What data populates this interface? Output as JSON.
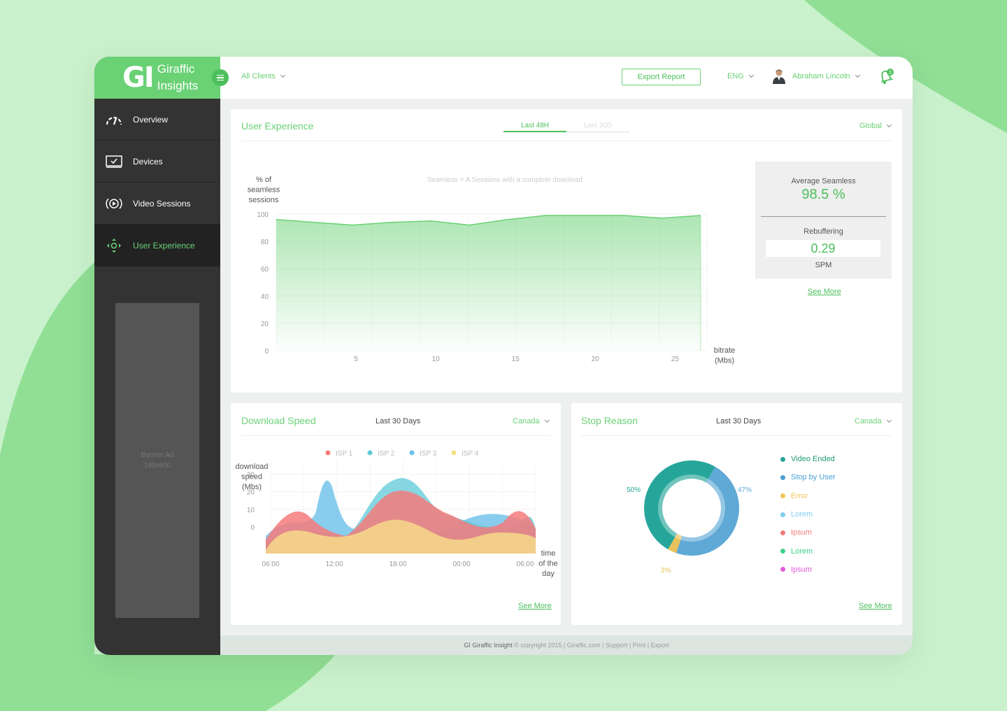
{
  "app": {
    "logo_mark": "GI",
    "logo_line1": "Giraffic",
    "logo_line2": "Insights"
  },
  "sidebar": {
    "items": [
      {
        "label": "Overview",
        "icon": "speedometer-icon",
        "active": false
      },
      {
        "label": "Devices",
        "icon": "monitor-check-icon",
        "active": false
      },
      {
        "label": "Video Sessions",
        "icon": "play-broadcast-icon",
        "active": false
      },
      {
        "label": "User Experience",
        "icon": "move-arrows-icon",
        "active": true
      }
    ],
    "banner_line1": "Banner Ad",
    "banner_line2": "160x600"
  },
  "topbar": {
    "clients": "All Clients",
    "export_label": "Export Report",
    "lang": "ENG",
    "user_name": "Abraham Lincoln",
    "notification_count": "3"
  },
  "user_experience": {
    "title": "User Experience",
    "tabs": [
      {
        "label": "Last 48H",
        "active": true
      },
      {
        "label": "Last 30D",
        "active": false
      }
    ],
    "region": "Global",
    "note": "Seamless = A Sessions with a complete download",
    "stats": {
      "avg_label": "Average Seamless",
      "avg_value": "98.5 %",
      "rebuf_label": "Rebuffering",
      "rebuf_value": "0.29",
      "rebuf_unit": "SPM"
    },
    "see_more": "See More"
  },
  "download_speed": {
    "title": "Download Speed",
    "period": "Last 30 Days",
    "region": "Canada",
    "see_more": "See More"
  },
  "stop_reason": {
    "title": "Stop Reason",
    "period": "Last 30 Days",
    "region": "Canada",
    "see_more": "See More",
    "legend": [
      {
        "label": "Video Ended",
        "color": "#26a69a"
      },
      {
        "label": "Stop by User",
        "color": "#4a9fd4"
      },
      {
        "label": "Error",
        "color": "#f2c45a"
      },
      {
        "label": "Lorem",
        "color": "#7fcdf0"
      },
      {
        "label": "Ipsum",
        "color": "#f47b7b"
      },
      {
        "label": "Lorem",
        "color": "#3ccf87"
      },
      {
        "label": "Ipsum",
        "color": "#e45ad9"
      }
    ]
  },
  "footer": {
    "brand": "GI Giraffic Insight",
    "rest": "© copyright 2015  |  Giraffic.com  |  Support  |  Print  |  Export"
  },
  "chart_data": [
    {
      "type": "area",
      "ylabel_lines": [
        "% of",
        "seamless",
        "sessions"
      ],
      "xlabel_lines": [
        "bitrate",
        "(Mbs)"
      ],
      "ylim": [
        0,
        100
      ],
      "yticks": [
        0,
        20,
        40,
        60,
        80,
        100
      ],
      "xlim": [
        0,
        27
      ],
      "xticks": [
        5,
        10,
        15,
        20,
        25
      ],
      "x": [
        0,
        2.4,
        4.8,
        7.2,
        9.7,
        12.1,
        14.5,
        16.9,
        19.3,
        21.8,
        24.2,
        26.6
      ],
      "values": [
        96,
        94,
        92,
        94,
        95,
        92,
        96,
        99,
        99,
        99,
        97,
        99
      ],
      "color": "#6ad175",
      "grid": true
    },
    {
      "type": "area",
      "ylabel_lines": [
        "download",
        "speed",
        "(Mbs)"
      ],
      "xlabel_lines": [
        "time",
        "of the",
        "day"
      ],
      "ylim": [
        0,
        30
      ],
      "yticks": [
        0,
        10,
        20,
        30
      ],
      "xticks": [
        "06:00",
        "12:00",
        "18:00",
        "00:00",
        "06:00"
      ],
      "legend": [
        {
          "name": "ISP 1",
          "color": "#f47b7b"
        },
        {
          "name": "ISP 2",
          "color": "#5ec9d8"
        },
        {
          "name": "ISP 3",
          "color": "#6cc0ea"
        },
        {
          "name": "ISP 4",
          "color": "#f7df8a"
        }
      ],
      "grid": true
    },
    {
      "type": "pie",
      "donut": true,
      "slices": [
        {
          "label": "Video Ended",
          "value": 50,
          "color": "#26a69a"
        },
        {
          "label": "Stop by User",
          "value": 47,
          "color": "#5ea9d6"
        },
        {
          "label": "Error",
          "value": 3,
          "color": "#e8c15a"
        }
      ],
      "labels": [
        "50%",
        "47%",
        "3%"
      ]
    }
  ]
}
